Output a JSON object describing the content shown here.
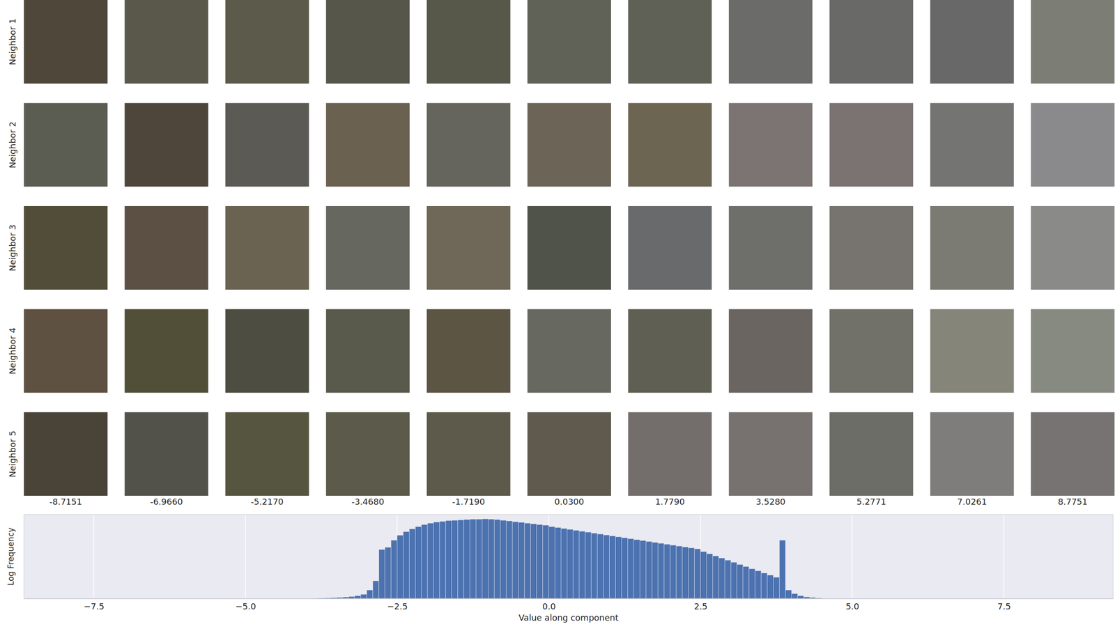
{
  "chart_data": [
    {
      "type": "image_grid",
      "row_labels": [
        "Neighbor 1",
        "Neighbor 2",
        "Neighbor 3",
        "Neighbor 4",
        "Neighbor 5"
      ],
      "columns": [
        {
          "value": -8.7151,
          "label": "-8.7151"
        },
        {
          "value": -6.966,
          "label": "-6.9660"
        },
        {
          "value": -5.217,
          "label": "-5.2170"
        },
        {
          "value": -3.468,
          "label": "-3.4680"
        },
        {
          "value": -1.719,
          "label": "-1.7190"
        },
        {
          "value": 0.03,
          "label": "0.0300"
        },
        {
          "value": 1.779,
          "label": "1.7790"
        },
        {
          "value": 3.528,
          "label": "3.5280"
        },
        {
          "value": 5.2771,
          "label": "5.2771"
        },
        {
          "value": 7.0261,
          "label": "7.0261"
        },
        {
          "value": 8.7751,
          "label": "8.7751"
        }
      ],
      "colors": [
        [
          "#4f473a",
          "#59584a",
          "#5b5a4b",
          "#56574a",
          "#575849",
          "#606157",
          "#5f6056",
          "#6b6b69",
          "#696a68",
          "#676867",
          "#7c7d75"
        ],
        [
          "#5c5d52",
          "#4e463a",
          "#5c5a55",
          "#6a6150",
          "#65655e",
          "#6b6457",
          "#6b6552",
          "#7c7473",
          "#7b7372",
          "#747573",
          "#8a8a8c"
        ],
        [
          "#524d38",
          "#5c4f43",
          "#6b6351",
          "#66675f",
          "#6f6858",
          "#50534a",
          "#696a6c",
          "#6e6f6a",
          "#77736f",
          "#7b7b74",
          "#8a8b89"
        ],
        [
          "#5e5142",
          "#524f38",
          "#4d4d42",
          "#5a5a4c",
          "#5d5544",
          "#676860",
          "#5f5f53",
          "#6a6561",
          "#717069",
          "#858679",
          "#878a80"
        ],
        [
          "#4a4337",
          "#52524b",
          "#56553f",
          "#5c5a4a",
          "#5d5a4b",
          "#5f5a4d",
          "#736e6b",
          "#77726f",
          "#6b6d66",
          "#7f7d7b",
          "#767372"
        ]
      ]
    },
    {
      "type": "histogram",
      "xlabel": "Value along component",
      "ylabel": "Log Frequency",
      "color": "#4c72b0",
      "grid": true,
      "tick_labels": "x",
      "xlim": [
        -8.65,
        9.3
      ],
      "xticks": [
        {
          "value": -7.5,
          "label": "−7.5"
        },
        {
          "value": -5,
          "label": "−5.0"
        },
        {
          "value": -2.5,
          "label": "−2.5"
        },
        {
          "value": 0,
          "label": "0.0"
        },
        2.5,
        {
          "value": 5,
          "label": "5.0"
        },
        7.5
      ],
      "ylim": [
        0,
        11.8
      ],
      "bins": [
        -3.9,
        -3.8,
        -3.7,
        -3.6,
        -3.5,
        -3.4,
        -3.3,
        -3.2,
        -3.1,
        -3.0,
        -2.9,
        -2.8,
        -2.7,
        -2.6,
        -2.5,
        -2.4,
        -2.3,
        -2.2,
        -2.1,
        -2.0,
        -1.9,
        -1.8,
        -1.7,
        -1.6,
        -1.5,
        -1.4,
        -1.3,
        -1.2,
        -1.1,
        -1.0,
        -0.9,
        -0.8,
        -0.7,
        -0.6,
        -0.5,
        -0.4,
        -0.3,
        -0.2,
        -0.1,
        0.0,
        0.1,
        0.2,
        0.3,
        0.4,
        0.5,
        0.6,
        0.7,
        0.8,
        0.9,
        1.0,
        1.1,
        1.2,
        1.3,
        1.4,
        1.5,
        1.6,
        1.7,
        1.8,
        1.9,
        2.0,
        2.1,
        2.2,
        2.3,
        2.4,
        2.5,
        2.6,
        2.7,
        2.8,
        2.9,
        3.0,
        3.1,
        3.2,
        3.3,
        3.4,
        3.5,
        3.6,
        3.7,
        3.8,
        3.9,
        4.0,
        4.1,
        4.2,
        4.3,
        4.4,
        4.5
      ],
      "counts": [
        0.05,
        0.07,
        0.1,
        0.13,
        0.17,
        0.22,
        0.3,
        0.4,
        0.6,
        1.2,
        2.5,
        6.9,
        7.2,
        8.2,
        8.9,
        9.4,
        9.8,
        10.1,
        10.4,
        10.6,
        10.75,
        10.85,
        10.95,
        11.0,
        11.05,
        11.1,
        11.15,
        11.15,
        11.2,
        11.15,
        11.1,
        11.0,
        10.9,
        10.8,
        10.7,
        10.6,
        10.5,
        10.4,
        10.3,
        10.1,
        9.98,
        9.85,
        9.72,
        9.59,
        9.46,
        9.33,
        9.2,
        9.07,
        8.94,
        8.81,
        8.68,
        8.55,
        8.42,
        8.29,
        8.16,
        8.03,
        7.9,
        7.77,
        7.64,
        7.51,
        7.38,
        7.25,
        7.12,
        6.99,
        6.6,
        6.3,
        6.0,
        5.7,
        5.4,
        5.1,
        4.8,
        4.5,
        4.2,
        3.9,
        3.6,
        3.3,
        3.0,
        8.2,
        1.2,
        0.7,
        0.4,
        0.25,
        0.15,
        0.08
      ]
    }
  ]
}
